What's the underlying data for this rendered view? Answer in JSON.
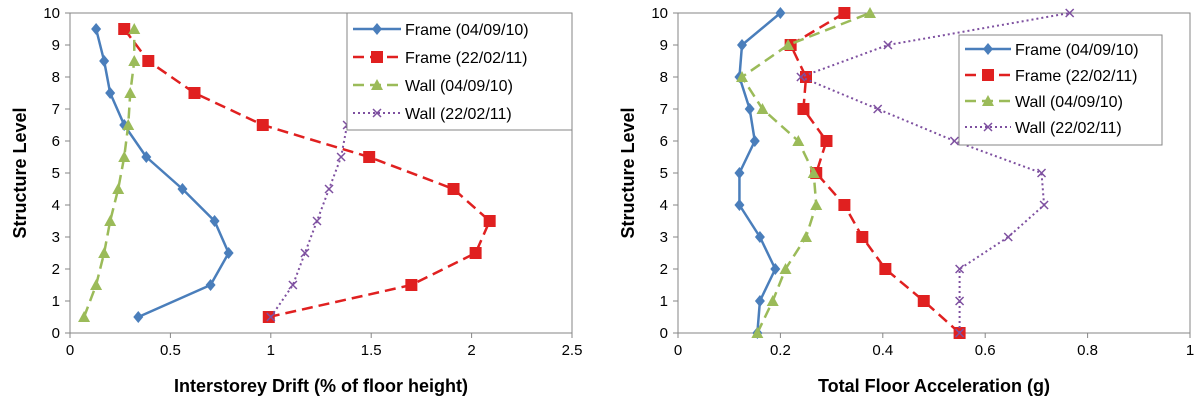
{
  "chart_data": [
    {
      "type": "line",
      "xlabel": "Interstorey Drift (% of floor height)",
      "ylabel": "Structure Level",
      "xlim": [
        0,
        2.5
      ],
      "ylim": [
        0,
        10
      ],
      "xticks": [
        0,
        0.5,
        1,
        1.5,
        2,
        2.5
      ],
      "xtick_labels": [
        "0",
        "0.5",
        "1",
        "1.5",
        "2",
        "2.5"
      ],
      "yticks": [
        0,
        1,
        2,
        3,
        4,
        5,
        6,
        7,
        8,
        9,
        10
      ],
      "ytick_labels": [
        "0",
        "1",
        "2",
        "3",
        "4",
        "5",
        "6",
        "7",
        "8",
        "9",
        "10"
      ],
      "grid": false,
      "legend_position": "top-right",
      "series": [
        {
          "name": "Frame (04/09/10)",
          "color": "#4a7ebb",
          "marker": "diamond",
          "line": "solid",
          "y": [
            0.5,
            1.5,
            2.5,
            3.5,
            4.5,
            5.5,
            6.5,
            7.5,
            8.5,
            9.5
          ],
          "x": [
            0.34,
            0.7,
            0.79,
            0.72,
            0.56,
            0.38,
            0.27,
            0.2,
            0.17,
            0.13
          ]
        },
        {
          "name": "Frame (22/02/11)",
          "color": "#e02020",
          "marker": "square",
          "line": "dash",
          "y": [
            0.5,
            1.5,
            2.5,
            3.5,
            4.5,
            5.5,
            6.5,
            7.5,
            8.5,
            9.5
          ],
          "x": [
            0.99,
            1.7,
            2.02,
            2.09,
            1.91,
            1.49,
            0.96,
            0.62,
            0.39,
            0.27
          ]
        },
        {
          "name": "Wall (04/09/10)",
          "color": "#9bbb59",
          "marker": "triangle",
          "line": "dash",
          "y": [
            0.5,
            1.5,
            2.5,
            3.5,
            4.5,
            5.5,
            6.5,
            7.5,
            8.5,
            9.5
          ],
          "x": [
            0.07,
            0.13,
            0.17,
            0.2,
            0.24,
            0.27,
            0.29,
            0.3,
            0.32,
            0.32
          ]
        },
        {
          "name": "Wall (22/02/11)",
          "color": "#7e50a0",
          "marker": "x",
          "line": "dot",
          "y": [
            0.5,
            1.5,
            2.5,
            3.5,
            4.5,
            5.5,
            6.5,
            7.5,
            8.5,
            9.5
          ],
          "x": [
            1.0,
            1.11,
            1.17,
            1.23,
            1.29,
            1.35,
            1.38,
            1.41,
            1.43,
            1.43
          ]
        }
      ]
    },
    {
      "type": "line",
      "xlabel": "Total Floor Acceleration (g)",
      "ylabel": "Structure Level",
      "xlim": [
        0,
        1
      ],
      "ylim": [
        0,
        10
      ],
      "xticks": [
        0,
        0.2,
        0.4,
        0.6,
        0.8,
        1
      ],
      "xtick_labels": [
        "0",
        "0.2",
        "0.4",
        "0.6",
        "0.8",
        "1"
      ],
      "yticks": [
        0,
        1,
        2,
        3,
        4,
        5,
        6,
        7,
        8,
        9,
        10
      ],
      "ytick_labels": [
        "0",
        "1",
        "2",
        "3",
        "4",
        "5",
        "6",
        "7",
        "8",
        "9",
        "10"
      ],
      "grid": false,
      "legend_position": "right",
      "series": [
        {
          "name": "Frame (04/09/10)",
          "color": "#4a7ebb",
          "marker": "diamond",
          "line": "solid",
          "y": [
            0,
            1,
            2,
            3,
            4,
            5,
            6,
            7,
            8,
            9,
            10
          ],
          "x": [
            0.155,
            0.16,
            0.19,
            0.16,
            0.12,
            0.12,
            0.15,
            0.14,
            0.12,
            0.125,
            0.2
          ]
        },
        {
          "name": "Frame (22/02/11)",
          "color": "#e02020",
          "marker": "square",
          "line": "dash",
          "y": [
            0,
            1,
            2,
            3,
            4,
            5,
            6,
            7,
            8,
            9,
            10
          ],
          "x": [
            0.55,
            0.48,
            0.405,
            0.36,
            0.325,
            0.27,
            0.29,
            0.245,
            0.25,
            0.22,
            0.325
          ]
        },
        {
          "name": "Wall (04/09/10)",
          "color": "#9bbb59",
          "marker": "triangle",
          "line": "dash",
          "y": [
            0,
            1,
            2,
            3,
            4,
            5,
            6,
            7,
            8,
            9,
            10
          ],
          "x": [
            0.155,
            0.185,
            0.21,
            0.25,
            0.27,
            0.265,
            0.235,
            0.165,
            0.125,
            0.215,
            0.375
          ]
        },
        {
          "name": "Wall (22/02/11)",
          "color": "#7e50a0",
          "marker": "x",
          "line": "dot",
          "y": [
            0,
            1,
            2,
            3,
            4,
            5,
            6,
            7,
            8,
            9,
            10
          ],
          "x": [
            0.55,
            0.55,
            0.55,
            0.645,
            0.715,
            0.71,
            0.54,
            0.39,
            0.24,
            0.41,
            0.765
          ]
        }
      ]
    }
  ]
}
